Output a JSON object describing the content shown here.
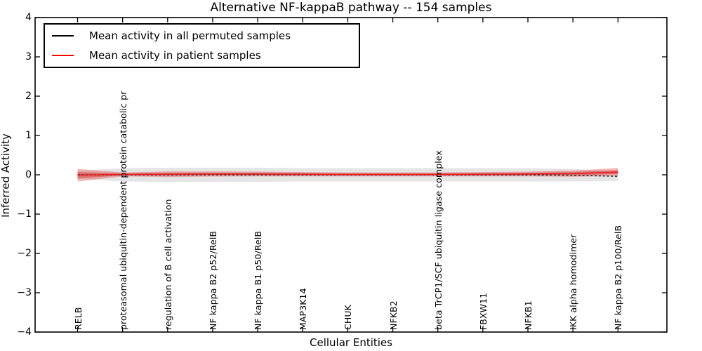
{
  "chart_data": {
    "type": "line",
    "title": "Alternative NF-kappaB pathway -- 154 samples",
    "xlabel": "Cellular Entities",
    "ylabel": "Inferred Activity",
    "ylim": [
      -4,
      4
    ],
    "yticks": [
      -4,
      -3,
      -2,
      -1,
      0,
      1,
      2,
      3,
      4
    ],
    "grid": false,
    "legend_position": "upper left",
    "categories": [
      "RELB",
      "proteasomal ubiquitin-dependent protein catabolic pr",
      "regulation of B cell activation",
      "NF kappa B2 p52/RelB",
      "NF kappa B1 p50/RelB",
      "MAP3K14",
      "CHUK",
      "NFKB2",
      "beta TrCP1/SCF ubiquitin ligase complex",
      "FBXW11",
      "NFKB1",
      "IKK alpha homodimer",
      "NF kappa B2 p100/RelB"
    ],
    "series": [
      {
        "name": "Mean activity in all permuted samples",
        "color": "#000000",
        "line_style": "dashed-in-plot",
        "values": [
          0,
          0,
          0,
          0,
          0,
          0,
          0,
          0,
          0,
          0,
          0,
          -0.01,
          -0.04
        ],
        "band_halfwidth": [
          0.1,
          0.17,
          0.18,
          0.18,
          0.18,
          0.17,
          0.17,
          0.17,
          0.17,
          0.17,
          0.17,
          0.16,
          0.12
        ],
        "band_color": "rgba(0,0,0,0.10)"
      },
      {
        "name": "Mean activity in patient samples",
        "color": "#e62020",
        "line_style": "solid",
        "values": [
          -0.01,
          0.01,
          0.015,
          0.02,
          0.02,
          0.015,
          0.01,
          0.01,
          0.01,
          0.015,
          0.02,
          0.03,
          0.07
        ],
        "band_outer_halfwidth": [
          0.16,
          0.05,
          0.07,
          0.065,
          0.06,
          0.055,
          0.05,
          0.05,
          0.05,
          0.055,
          0.06,
          0.08,
          0.1
        ],
        "band_inner_halfwidth": [
          0.08,
          0.025,
          0.035,
          0.03,
          0.03,
          0.028,
          0.025,
          0.025,
          0.025,
          0.028,
          0.03,
          0.04,
          0.05
        ],
        "band_outer_color": "rgba(230,60,60,0.38)",
        "band_inner_color": "rgba(205,35,35,0.42)"
      }
    ]
  },
  "legend": {
    "items": [
      {
        "label": "Mean activity in all permuted samples",
        "color": "#000000"
      },
      {
        "label": "Mean activity in patient samples",
        "color": "#ff0000"
      }
    ]
  },
  "colors": {
    "background": "#ffffff",
    "spine": "#000000",
    "permuted_line": "#111111",
    "patient_line": "#e62020"
  }
}
